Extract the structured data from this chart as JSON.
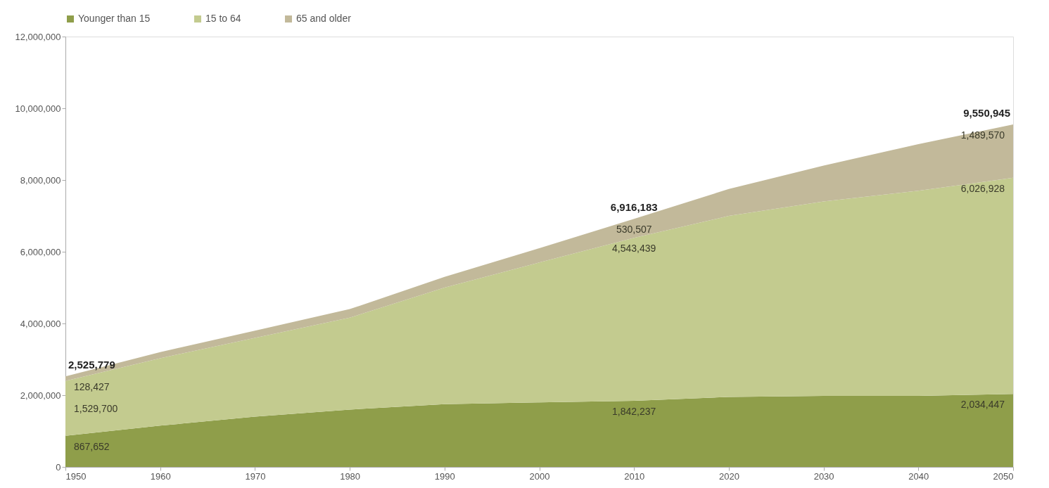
{
  "chart_data": {
    "type": "area",
    "stacked": true,
    "x": [
      1950,
      1960,
      1970,
      1980,
      1990,
      2000,
      2010,
      2020,
      2030,
      2040,
      2050
    ],
    "series": [
      {
        "name": "Younger than 15",
        "color": "#8f9e4a",
        "values": [
          867652,
          1150000,
          1400000,
          1600000,
          1750000,
          1800000,
          1842237,
          1950000,
          1980000,
          1980000,
          2034447
        ],
        "value_labels": [
          "867,652",
          null,
          null,
          null,
          null,
          null,
          "1,842,237",
          null,
          null,
          null,
          "2,034,447"
        ]
      },
      {
        "name": "15 to 64",
        "color": "#c3cb8f",
        "values": [
          1529700,
          1880000,
          2200000,
          2560000,
          3250000,
          3900000,
          4543439,
          5050000,
          5420000,
          5720000,
          6026928
        ],
        "value_labels": [
          "1,529,700",
          null,
          null,
          null,
          null,
          null,
          "4,543,439",
          null,
          null,
          null,
          "6,026,928"
        ]
      },
      {
        "name": "65 and older",
        "color": "#c2b99a",
        "values": [
          128427,
          170000,
          200000,
          240000,
          300000,
          400000,
          530507,
          750000,
          1000000,
          1300000,
          1489570
        ],
        "value_labels": [
          "128,427",
          null,
          null,
          null,
          null,
          null,
          "530,507",
          null,
          null,
          null,
          "1,489,570"
        ]
      }
    ],
    "totals": [
      "2,525,779",
      null,
      null,
      null,
      null,
      null,
      "6,916,183",
      null,
      null,
      null,
      "9,550,945"
    ],
    "xlim": [
      1950,
      2050
    ],
    "xticks": [
      1950,
      1960,
      1970,
      1980,
      1990,
      2000,
      2010,
      2020,
      2030,
      2040,
      2050
    ],
    "ylim": [
      0,
      12000000
    ],
    "yticks": [
      0,
      {
        "value": 2000000,
        "label": "2,000,000"
      },
      {
        "value": 4000000,
        "label": "4,000,000"
      },
      {
        "value": 6000000,
        "label": "6,000,000"
      },
      {
        "value": 8000000,
        "label": "8,000,000"
      },
      {
        "value": 10000000,
        "label": "10,000,000"
      },
      {
        "value": 12000000,
        "label": "12,000,000"
      }
    ],
    "grid": false,
    "legend": "top"
  }
}
